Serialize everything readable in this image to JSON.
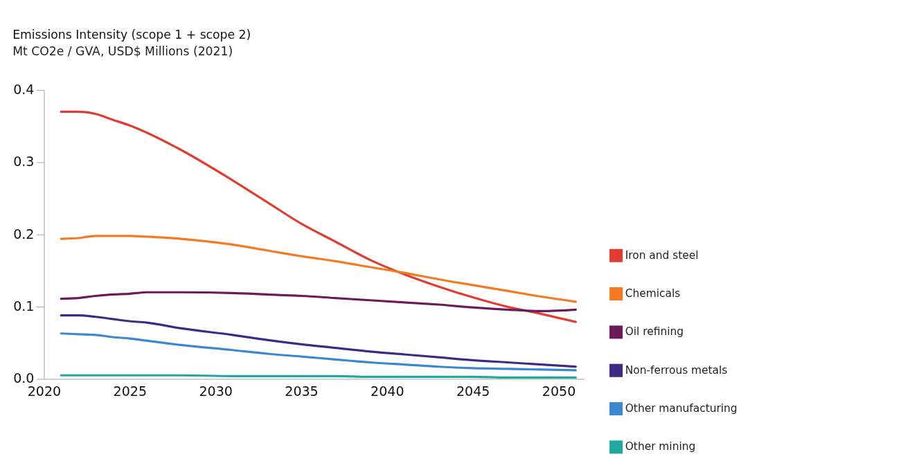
{
  "chart_data": {
    "type": "line",
    "title": "Emissions Intensity (scope 1 + scope 2)",
    "subtitle": "Mt CO2e / GVA, USD$ Millions (2021)",
    "x": [
      2021,
      2022,
      2023,
      2024,
      2025,
      2026,
      2028,
      2031,
      2033,
      2035,
      2037,
      2039,
      2041,
      2043,
      2045,
      2047,
      2049,
      2051
    ],
    "series": [
      {
        "name": "Iron and steel",
        "color": "#e03c31",
        "values": [
          0.37,
          0.37,
          0.367,
          0.359,
          0.351,
          0.341,
          0.317,
          0.275,
          0.245,
          0.215,
          0.19,
          0.165,
          0.145,
          0.128,
          0.113,
          0.1,
          0.09,
          0.079
        ]
      },
      {
        "name": "Chemicals",
        "color": "#f47920",
        "values": [
          0.194,
          0.195,
          0.198,
          0.198,
          0.198,
          0.197,
          0.194,
          0.186,
          0.178,
          0.17,
          0.163,
          0.155,
          0.147,
          0.138,
          0.13,
          0.122,
          0.114,
          0.107
        ]
      },
      {
        "name": "Oil refining",
        "color": "#6b1a5c",
        "values": [
          0.111,
          0.112,
          0.115,
          0.117,
          0.118,
          0.12,
          0.12,
          0.119,
          0.117,
          0.115,
          0.112,
          0.109,
          0.106,
          0.103,
          0.099,
          0.096,
          0.094,
          0.096
        ]
      },
      {
        "name": "Non-ferrous metals",
        "color": "#3e2a84",
        "values": [
          0.088,
          0.088,
          0.086,
          0.083,
          0.08,
          0.078,
          0.07,
          0.061,
          0.054,
          0.048,
          0.043,
          0.038,
          0.034,
          0.03,
          0.026,
          0.023,
          0.02,
          0.017
        ]
      },
      {
        "name": "Other manufacturing",
        "color": "#3b87d0",
        "values": [
          0.063,
          0.062,
          0.061,
          0.058,
          0.056,
          0.053,
          0.047,
          0.04,
          0.035,
          0.031,
          0.027,
          0.023,
          0.02,
          0.017,
          0.015,
          0.014,
          0.013,
          0.012
        ]
      },
      {
        "name": "Other mining",
        "color": "#22a99f",
        "values": [
          0.005,
          0.005,
          0.005,
          0.005,
          0.005,
          0.005,
          0.005,
          0.004,
          0.004,
          0.004,
          0.004,
          0.003,
          0.003,
          0.003,
          0.003,
          0.002,
          0.002,
          0.002
        ]
      }
    ],
    "xlim": [
      2020,
      2051.5
    ],
    "xticks": [
      2020,
      2025,
      2030,
      2035,
      2040,
      2045,
      2050
    ],
    "ylim": [
      0,
      0.4
    ],
    "yticks": [
      {
        "value": 0,
        "label": "0.0"
      },
      0.1,
      0.2,
      0.3,
      0.4
    ],
    "grid": false,
    "legend": "right",
    "marker": "none",
    "line_style": "solid"
  }
}
